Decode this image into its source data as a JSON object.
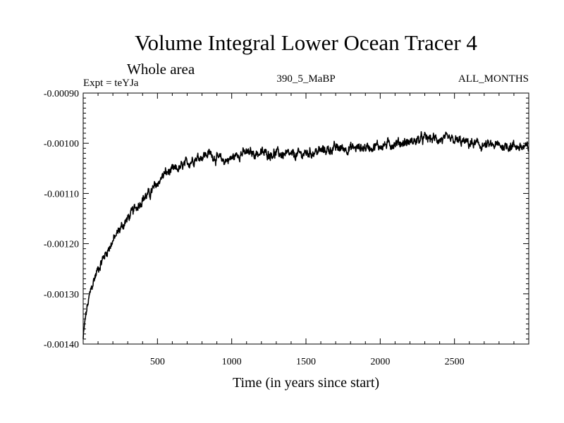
{
  "chart_data": {
    "type": "line",
    "title": "Volume Integral Lower Ocean Tracer 4",
    "subtitle": "Whole area",
    "expt_label": "Expt = teYJa",
    "run_label": "390_5_MaBP",
    "months_label": "ALL_MONTHS",
    "xlabel": "Time (in years since start)",
    "ylabel": "",
    "xlim": [
      0,
      3000
    ],
    "ylim": [
      -0.0014,
      -0.0009
    ],
    "x_ticks": [
      500,
      1000,
      1500,
      2000,
      2500
    ],
    "x_tick_labels": [
      "500",
      "1000",
      "1500",
      "2000",
      "2500"
    ],
    "y_ticks": [
      -0.0009,
      -0.001,
      -0.0011,
      -0.0012,
      -0.0013,
      -0.0014
    ],
    "y_tick_labels": [
      "-0.00090",
      "-0.00100",
      "-0.00110",
      "-0.00120",
      "-0.00130",
      "-0.00140"
    ],
    "line_color": "#000000",
    "series": [
      {
        "name": "Lower Ocean Tracer 4",
        "x": [
          0,
          10,
          25,
          50,
          75,
          100,
          150,
          200,
          250,
          300,
          350,
          400,
          450,
          500,
          550,
          600,
          650,
          700,
          750,
          800,
          850,
          900,
          950,
          1000,
          1050,
          1100,
          1200,
          1300,
          1400,
          1500,
          1600,
          1700,
          1800,
          1900,
          2000,
          2100,
          2200,
          2300,
          2400,
          2500,
          2600,
          2700,
          2800,
          2900,
          3000
        ],
        "values": [
          -0.00139,
          -0.00136,
          -0.00133,
          -0.001295,
          -0.00127,
          -0.00125,
          -0.00122,
          -0.001195,
          -0.00117,
          -0.00115,
          -0.00113,
          -0.00111,
          -0.0011,
          -0.00108,
          -0.00106,
          -0.001055,
          -0.00105,
          -0.00104,
          -0.00103,
          -0.001025,
          -0.00102,
          -0.00103,
          -0.001035,
          -0.00103,
          -0.00102,
          -0.00102,
          -0.00102,
          -0.00102,
          -0.001025,
          -0.00102,
          -0.001015,
          -0.00101,
          -0.00101,
          -0.001008,
          -0.001005,
          -0.001,
          -0.000998,
          -0.00099,
          -0.000992,
          -0.000995,
          -0.001,
          -0.001005,
          -0.001005,
          -0.001005,
          -0.00101
        ]
      }
    ]
  }
}
